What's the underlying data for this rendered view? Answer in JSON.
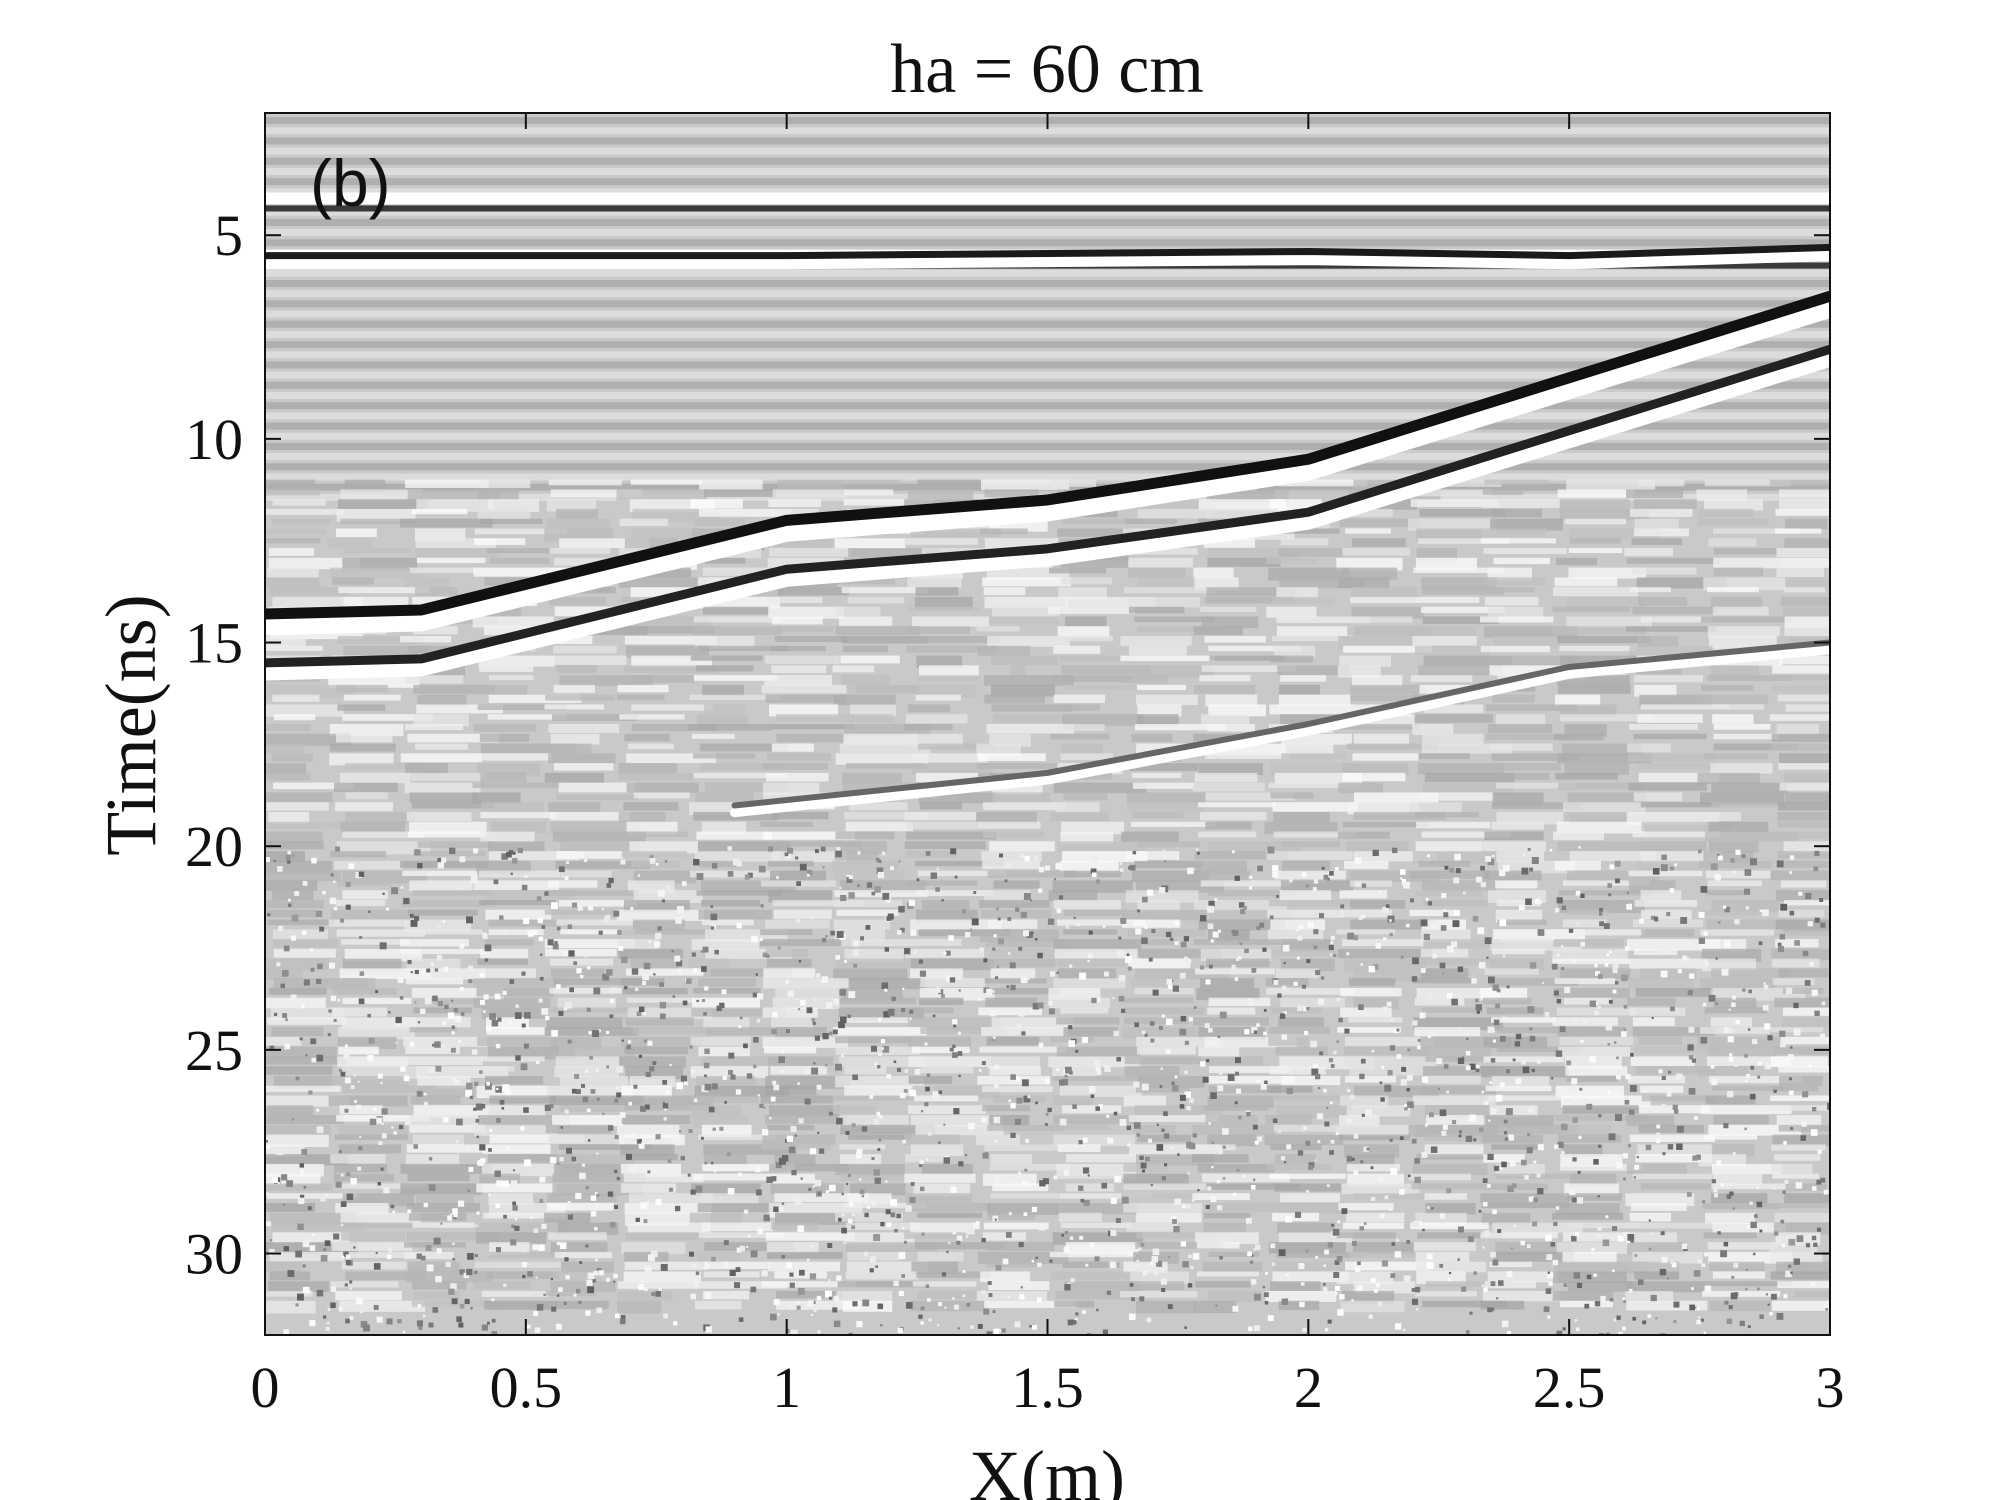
{
  "chart_data": {
    "type": "heatmap",
    "title": "ha = 60 cm",
    "panel_label": "(b)",
    "xlabel": "X(m)",
    "ylabel": "Time(ns)",
    "xlim": [
      0,
      3
    ],
    "ylim": [
      32,
      2
    ],
    "y_axis_direction": "reversed (time increases downward)",
    "x_ticks": [
      0,
      0.5,
      1,
      1.5,
      2,
      2.5,
      3
    ],
    "x_tick_labels": [
      "0",
      "0.5",
      "1",
      "1.5",
      "2",
      "2.5",
      "3"
    ],
    "y_ticks": [
      5,
      10,
      15,
      20,
      25,
      30
    ],
    "y_tick_labels": [
      "5",
      "10",
      "15",
      "20",
      "25",
      "30"
    ],
    "colormap": "grayscale",
    "grid": false,
    "legend": "none",
    "series": [
      {
        "x": [
          0,
          0.3,
          1.0,
          1.5,
          2.0,
          2.5,
          3.0
        ],
        "y": [
          14.3,
          14.2,
          12.0,
          11.5,
          10.5,
          8.5,
          6.5
        ]
      },
      {
        "x": [
          0,
          0.3,
          1.0,
          1.5,
          2.0,
          2.5,
          3.0
        ],
        "y": [
          15.5,
          15.4,
          13.2,
          12.7,
          11.8,
          9.8,
          7.8
        ]
      },
      {
        "x": [
          0,
          1.0,
          2.0,
          2.5,
          3.0
        ],
        "y": [
          5.5,
          5.5,
          5.4,
          5.5,
          5.3
        ]
      },
      {
        "x": [
          0.9,
          1.5,
          2.0,
          2.5,
          3.0
        ],
        "y": [
          19.0,
          18.2,
          17.0,
          15.6,
          15.0
        ]
      }
    ]
  }
}
